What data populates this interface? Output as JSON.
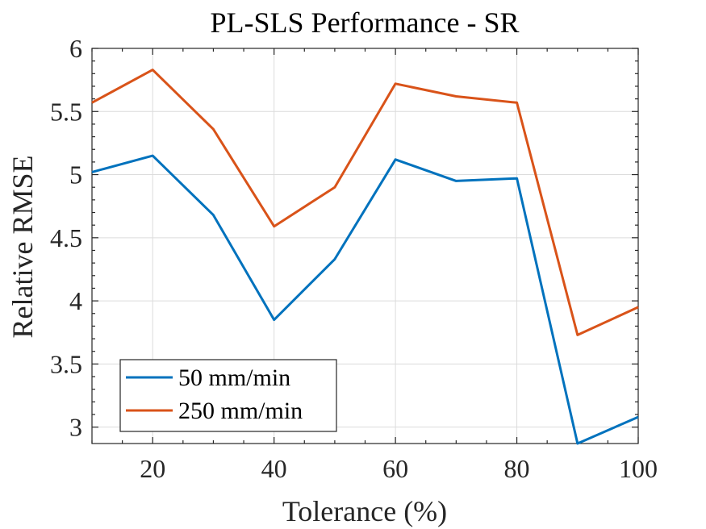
{
  "chart_data": {
    "type": "line",
    "title": "PL-SLS Performance - SR",
    "xlabel": "Tolerance (%)",
    "ylabel": "Relative RMSE",
    "xlim": [
      10,
      100
    ],
    "ylim": [
      2.87,
      6
    ],
    "x_ticks": [
      20,
      40,
      60,
      80,
      100
    ],
    "x_tick_labels": [
      "20",
      "40",
      "60",
      "80",
      "100"
    ],
    "y_ticks": [
      3,
      3.5,
      4,
      4.5,
      5,
      5.5,
      6
    ],
    "y_tick_labels": [
      "3",
      "3.5",
      "4",
      "4.5",
      "5",
      "5.5",
      "6"
    ],
    "grid": true,
    "legend_position": "bottom-left",
    "x": [
      10,
      20,
      30,
      40,
      50,
      60,
      70,
      80,
      90,
      100
    ],
    "series": [
      {
        "name": "50 mm/min",
        "color": "#0072BD",
        "values": [
          5.02,
          5.15,
          4.68,
          3.85,
          4.33,
          5.12,
          4.95,
          4.97,
          2.87,
          3.08
        ]
      },
      {
        "name": "250 mm/min",
        "color": "#D95319",
        "values": [
          5.57,
          5.83,
          5.36,
          4.59,
          4.9,
          5.72,
          5.62,
          5.57,
          3.73,
          3.95
        ]
      }
    ]
  }
}
